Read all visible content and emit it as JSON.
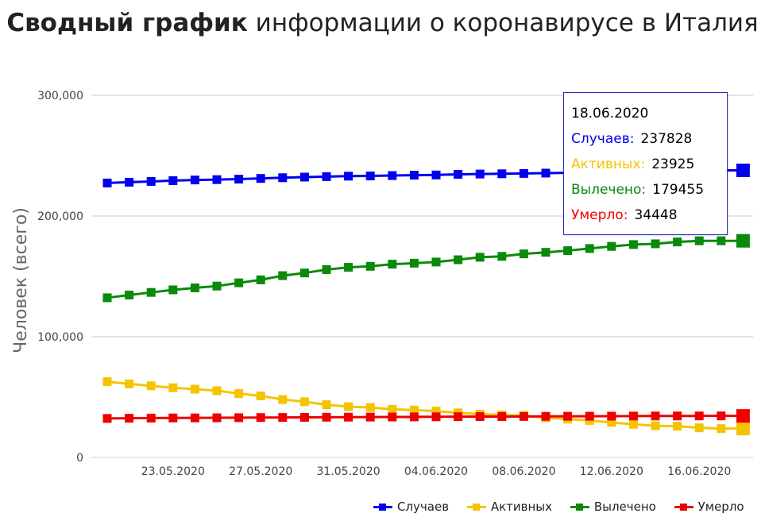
{
  "title": {
    "bold": "Сводный график",
    "rest": "информации о коронавирусе в Италия"
  },
  "chart_data": {
    "type": "line",
    "ylabel": "Человек (всего)",
    "xlabel": "",
    "ylim": [
      0,
      300000
    ],
    "yticks": [
      "0",
      "100,000",
      "200,000",
      "300,000"
    ],
    "ytick_values": [
      0,
      100000,
      200000,
      300000
    ],
    "x": [
      "20.05.2020",
      "21.05.2020",
      "22.05.2020",
      "23.05.2020",
      "24.05.2020",
      "25.05.2020",
      "26.05.2020",
      "27.05.2020",
      "28.05.2020",
      "29.05.2020",
      "30.05.2020",
      "31.05.2020",
      "01.06.2020",
      "02.06.2020",
      "03.06.2020",
      "04.06.2020",
      "05.06.2020",
      "06.06.2020",
      "07.06.2020",
      "08.06.2020",
      "09.06.2020",
      "10.06.2020",
      "11.06.2020",
      "12.06.2020",
      "13.06.2020",
      "14.06.2020",
      "15.06.2020",
      "16.06.2020",
      "17.06.2020",
      "18.06.2020"
    ],
    "xtick_labels": [
      "23.05.2020",
      "27.05.2020",
      "31.05.2020",
      "04.06.2020",
      "08.06.2020",
      "12.06.2020",
      "16.06.2020"
    ],
    "xtick_indices": [
      3,
      7,
      11,
      15,
      19,
      23,
      27
    ],
    "series": [
      {
        "name": "Случаев",
        "color": "#0000ee",
        "values": [
          227364,
          228006,
          228658,
          229327,
          229858,
          230158,
          230555,
          231139,
          231732,
          232248,
          232664,
          233019,
          233197,
          233515,
          233836,
          234013,
          234531,
          234801,
          234998,
          235278,
          235561,
          235763,
          236142,
          236305,
          236651,
          236989,
          237290,
          237500,
          237828,
          237828
        ]
      },
      {
        "name": "Активных",
        "color": "#f5c400",
        "values": [
          62752,
          60960,
          59322,
          57752,
          56594,
          55300,
          52942,
          50966,
          47986,
          46175,
          43691,
          42075,
          41367,
          39893,
          39297,
          38429,
          36976,
          35877,
          35262,
          34730,
          32872,
          31710,
          30637,
          28997,
          27485,
          26274,
          25909,
          24569,
          23925,
          23925
        ]
      },
      {
        "name": "Вылечено",
        "color": "#0a8a0a",
        "values": [
          132282,
          134560,
          136720,
          138840,
          140479,
          141981,
          144658,
          147101,
          150604,
          152844,
          155633,
          157507,
          158355,
          160092,
          160938,
          161895,
          163781,
          165837,
          166584,
          168646,
          169939,
          171338,
          173085,
          174865,
          176370,
          177010,
          178526,
          179455,
          179455,
          179455
        ]
      },
      {
        "name": "Умерло",
        "color": "#ee0000",
        "values": [
          32330,
          32486,
          32616,
          32735,
          32785,
          32877,
          32955,
          33072,
          33142,
          33229,
          33340,
          33415,
          33475,
          33530,
          33601,
          33689,
          33774,
          33846,
          33899,
          33964,
          34043,
          34114,
          34167,
          34223,
          34301,
          34345,
          34371,
          34405,
          34448,
          34448
        ]
      }
    ],
    "grid": true,
    "legend_position": "bottom-right"
  },
  "tooltip": {
    "date": "18.06.2020",
    "rows": [
      {
        "label": "Случаев:",
        "value": "237828",
        "color": "#0000ee"
      },
      {
        "label": "Активных:",
        "value": "23925",
        "color": "#f5c400"
      },
      {
        "label": "Вылечено:",
        "value": "179455",
        "color": "#0a8a0a"
      },
      {
        "label": "Умерло:",
        "value": "34448",
        "color": "#ee0000"
      }
    ]
  },
  "legend": [
    {
      "label": "Случаев",
      "color": "#0000ee"
    },
    {
      "label": "Активных",
      "color": "#f5c400"
    },
    {
      "label": "Вылечено",
      "color": "#0a8a0a"
    },
    {
      "label": "Умерло",
      "color": "#ee0000"
    }
  ]
}
